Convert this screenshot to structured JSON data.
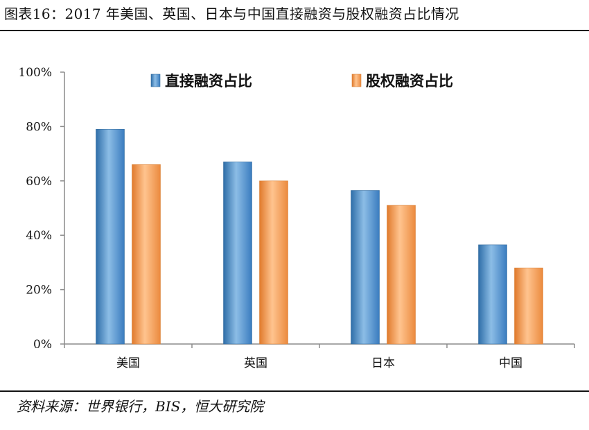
{
  "title": "图表16：2017 年美国、英国、日本与中国直接融资与股权融资占比情况",
  "source": "资料来源：世界银行，BIS，恒大研究院",
  "colors": {
    "series_direct": "#5b9bd5",
    "series_equity": "#f4a460",
    "axis": "#8c8c8c",
    "text": "#111111"
  },
  "chart_data": {
    "type": "bar",
    "title": "",
    "xlabel": "",
    "ylabel": "",
    "categories": [
      "美国",
      "英国",
      "日本",
      "中国"
    ],
    "series": [
      {
        "name": "直接融资占比",
        "values": [
          79,
          67,
          56.5,
          36.5
        ]
      },
      {
        "name": "股权融资占比",
        "values": [
          66,
          60,
          51,
          28
        ]
      }
    ],
    "ylim": [
      0,
      100
    ],
    "yticks": [
      0,
      20,
      40,
      60,
      80,
      100
    ],
    "ytick_labels": [
      "0%",
      "20%",
      "40%",
      "60%",
      "80%",
      "100%"
    ],
    "legend": "top",
    "grid": false
  }
}
